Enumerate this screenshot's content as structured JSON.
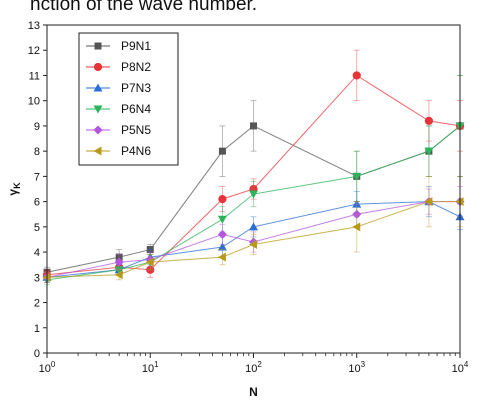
{
  "caption": "nction of the wave number.",
  "chart_data": {
    "type": "line",
    "xscale": "log",
    "xlim": [
      1,
      10000
    ],
    "ylim": [
      0,
      13
    ],
    "xlabel": "N",
    "ylabel": "γ_K",
    "xticks": [
      1,
      10,
      100,
      1000,
      10000
    ],
    "xtick_labels": [
      {
        "base": "10",
        "exp": "0"
      },
      {
        "base": "10",
        "exp": "1"
      },
      {
        "base": "10",
        "exp": "2"
      },
      {
        "base": "10",
        "exp": "3"
      },
      {
        "base": "10",
        "exp": "4"
      }
    ],
    "yticks": [
      0,
      1,
      2,
      3,
      4,
      5,
      6,
      7,
      8,
      9,
      10,
      11,
      12,
      13
    ],
    "ytick_labels": [
      "0",
      "1",
      "2",
      "3",
      "4",
      "5",
      "6",
      "7",
      "8",
      "9",
      "10",
      "11",
      "12",
      "13"
    ],
    "legend_position": "top-left",
    "series": [
      {
        "name": "P9N1",
        "color": "#555555",
        "marker": "square",
        "x": [
          1,
          5,
          10,
          50,
          100,
          1000,
          5000,
          10000
        ],
        "y": [
          3.2,
          3.8,
          4.1,
          8.0,
          9.0,
          7.0,
          8.0,
          9.0
        ],
        "err": [
          0.2,
          0.3,
          0.2,
          1.0,
          1.0,
          1.0,
          1.0,
          2.0
        ]
      },
      {
        "name": "P8N2",
        "color": "#e8333a",
        "marker": "circle",
        "x": [
          1,
          5,
          10,
          50,
          100,
          1000,
          5000,
          10000
        ],
        "y": [
          3.1,
          3.4,
          3.3,
          6.1,
          6.5,
          11.0,
          9.2,
          9.0
        ],
        "err": [
          0.2,
          0.3,
          0.3,
          0.5,
          0.4,
          1.0,
          0.8,
          1.0
        ]
      },
      {
        "name": "P7N3",
        "color": "#2a6fd6",
        "marker": "triangle-up",
        "x": [
          1,
          5,
          10,
          50,
          100,
          1000,
          5000,
          10000
        ],
        "y": [
          3.0,
          3.3,
          3.8,
          4.2,
          5.0,
          5.9,
          6.0,
          5.4
        ],
        "err": [
          0.2,
          0.2,
          0.3,
          0.4,
          0.4,
          0.5,
          0.6,
          0.5
        ]
      },
      {
        "name": "P6N4",
        "color": "#2db35a",
        "marker": "triangle-down",
        "x": [
          1,
          5,
          10,
          50,
          100,
          1000,
          5000,
          10000
        ],
        "y": [
          2.9,
          3.3,
          3.6,
          5.3,
          6.3,
          7.0,
          8.0,
          9.0
        ],
        "err": [
          0.2,
          0.2,
          0.3,
          0.5,
          0.5,
          1.0,
          1.0,
          2.0
        ]
      },
      {
        "name": "P5N5",
        "color": "#b455e0",
        "marker": "diamond",
        "x": [
          1,
          5,
          10,
          50,
          100,
          1000,
          5000,
          10000
        ],
        "y": [
          3.0,
          3.6,
          3.7,
          4.7,
          4.4,
          5.5,
          6.0,
          6.0
        ],
        "err": [
          0.2,
          0.3,
          0.3,
          0.4,
          0.4,
          0.5,
          0.5,
          0.6
        ]
      },
      {
        "name": "P4N6",
        "color": "#b89a1a",
        "marker": "triangle-left",
        "x": [
          1,
          5,
          10,
          50,
          100,
          1000,
          5000,
          10000
        ],
        "y": [
          3.0,
          3.1,
          3.6,
          3.8,
          4.3,
          5.0,
          6.0,
          6.0
        ],
        "err": [
          0.2,
          0.2,
          0.3,
          0.3,
          0.4,
          1.0,
          1.0,
          1.0
        ]
      }
    ]
  }
}
